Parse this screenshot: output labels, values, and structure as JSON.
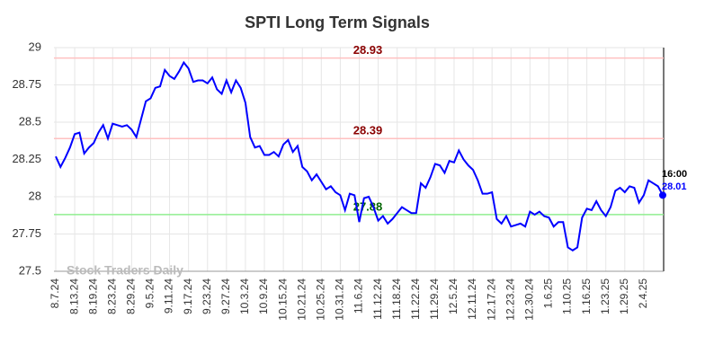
{
  "chart_data": {
    "type": "line",
    "title": "SPTI Long Term Signals",
    "categories": [
      "8.7.24",
      null,
      null,
      null,
      "8.13.24",
      null,
      null,
      null,
      "8.19.24",
      null,
      null,
      null,
      "8.23.24",
      null,
      null,
      null,
      "8.29.24",
      null,
      null,
      null,
      "9.5.24",
      null,
      null,
      null,
      "9.11.24",
      null,
      null,
      null,
      "9.17.24",
      null,
      null,
      null,
      "9.23.24",
      null,
      null,
      null,
      "9.27.24",
      null,
      null,
      null,
      "10.3.24",
      null,
      null,
      null,
      "10.9.24",
      null,
      null,
      null,
      "10.15.24",
      null,
      null,
      null,
      "10.21.24",
      null,
      null,
      null,
      "10.25.24",
      null,
      null,
      null,
      "10.31.24",
      null,
      null,
      null,
      "11.6.24",
      null,
      null,
      null,
      "11.12.24",
      null,
      null,
      null,
      "11.18.24",
      null,
      null,
      null,
      "11.22.24",
      null,
      null,
      null,
      "11.29.24",
      null,
      null,
      null,
      "12.5.24",
      null,
      null,
      null,
      "12.11.24",
      null,
      null,
      null,
      "12.17.24",
      null,
      null,
      null,
      "12.23.24",
      null,
      null,
      null,
      "12.30.24",
      null,
      null,
      null,
      "1.6.25",
      null,
      null,
      null,
      "1.10.25",
      null,
      null,
      null,
      "1.16.25",
      null,
      null,
      null,
      "1.23.25",
      null,
      null,
      null,
      "1.29.25",
      null,
      null,
      null,
      "2.4.25",
      null,
      null,
      null,
      null
    ],
    "series": [
      {
        "name": "SPTI",
        "color": "#0000ff",
        "values": [
          28.27,
          28.2,
          28.26,
          28.33,
          28.42,
          28.43,
          28.29,
          28.33,
          28.36,
          28.43,
          28.48,
          28.39,
          28.49,
          28.48,
          28.47,
          28.48,
          28.45,
          28.4,
          28.52,
          28.64,
          28.66,
          28.73,
          28.74,
          28.85,
          28.81,
          28.79,
          28.84,
          28.9,
          28.86,
          28.77,
          28.78,
          28.78,
          28.76,
          28.8,
          28.72,
          28.69,
          28.78,
          28.7,
          28.78,
          28.73,
          28.63,
          28.4,
          28.33,
          28.34,
          28.28,
          28.28,
          28.3,
          28.27,
          28.35,
          28.38,
          28.3,
          28.34,
          28.2,
          28.17,
          28.11,
          28.15,
          28.1,
          28.05,
          28.07,
          28.03,
          28.01,
          27.91,
          28.02,
          28.01,
          27.83,
          27.99,
          28.0,
          27.93,
          27.84,
          27.87,
          27.82,
          27.85,
          27.89,
          27.93,
          27.91,
          27.89,
          27.89,
          28.09,
          28.06,
          28.13,
          28.22,
          28.21,
          28.16,
          28.24,
          28.23,
          28.31,
          28.25,
          28.21,
          28.18,
          28.11,
          28.02,
          28.02,
          28.03,
          27.85,
          27.82,
          27.87,
          27.8,
          27.81,
          27.82,
          27.8,
          27.9,
          27.88,
          27.9,
          27.87,
          27.86,
          27.8,
          27.83,
          27.83,
          27.66,
          27.64,
          27.66,
          27.86,
          27.92,
          27.91,
          27.97,
          27.91,
          27.87,
          27.93,
          28.04,
          28.06,
          28.03,
          28.07,
          28.06,
          27.96,
          28.01,
          28.11,
          28.09,
          28.07,
          28.01
        ]
      }
    ],
    "ylim": [
      27.5,
      29
    ],
    "yticks": [
      27.5,
      27.75,
      28,
      28.25,
      28.5,
      28.75,
      29
    ],
    "grid": true,
    "reference_lines": [
      {
        "value": 28.93,
        "color": "#ffc0c0",
        "label_color": "#8b0000"
      },
      {
        "value": 28.39,
        "color": "#ffc0c0",
        "label_color": "#8b0000"
      },
      {
        "value": 27.88,
        "color": "#90ee90",
        "label_color": "#006400"
      }
    ],
    "last_time": "16:00",
    "watermark": "Stock Traders Daily"
  }
}
